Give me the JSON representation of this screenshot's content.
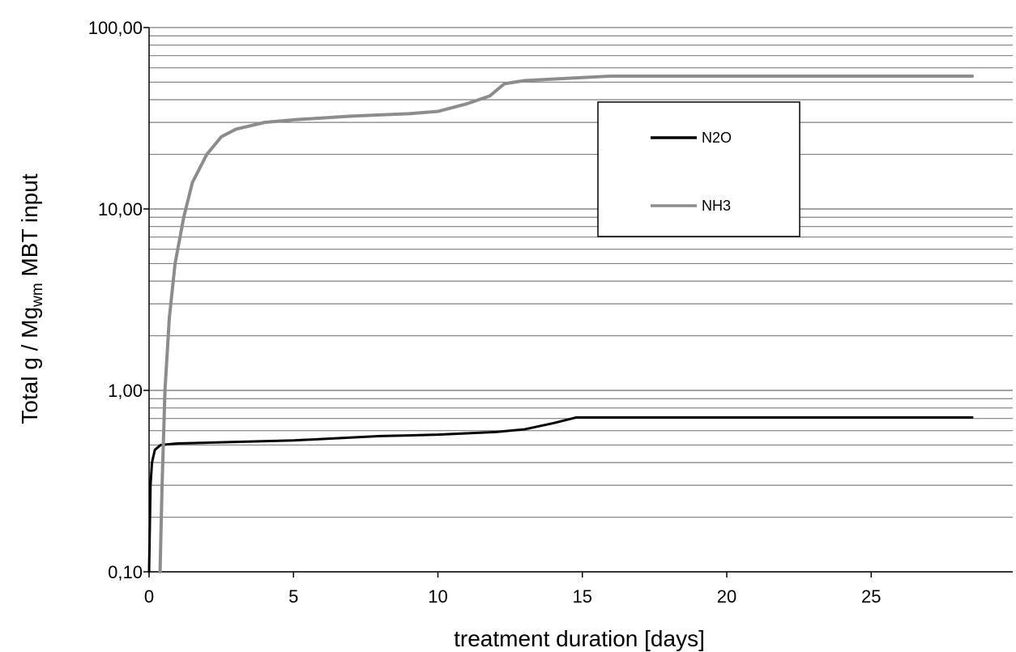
{
  "chart_data": {
    "type": "line",
    "xlabel": "treatment duration [days]",
    "ylabel": {
      "prefix": "Total g / Mg",
      "subscript": "wm",
      "suffix": " MBT input"
    },
    "x_scale": "linear",
    "y_scale": "log",
    "xlim": [
      0,
      30
    ],
    "ylim": [
      0.1,
      100
    ],
    "x_ticks": [
      0,
      5,
      10,
      15,
      20,
      25
    ],
    "x_tick_labels": [
      "0",
      "5",
      "10",
      "15",
      "20",
      "25"
    ],
    "y_ticks": [
      0.1,
      1,
      10,
      100
    ],
    "y_tick_labels": [
      "0,10",
      "1,00",
      "10,00",
      "100,00"
    ],
    "grid": "horizontal minor and major",
    "legend_placement": "upper-middle-right",
    "series": [
      {
        "name": "N2O",
        "color": "#000000",
        "points": [
          [
            0.0,
            0.1
          ],
          [
            0.05,
            0.3
          ],
          [
            0.1,
            0.4
          ],
          [
            0.2,
            0.47
          ],
          [
            0.4,
            0.5
          ],
          [
            1.0,
            0.51
          ],
          [
            3.0,
            0.52
          ],
          [
            5.0,
            0.53
          ],
          [
            8.0,
            0.56
          ],
          [
            10.0,
            0.57
          ],
          [
            12.0,
            0.59
          ],
          [
            13.0,
            0.61
          ],
          [
            14.0,
            0.66
          ],
          [
            14.8,
            0.71
          ],
          [
            20.0,
            0.71
          ],
          [
            28.5,
            0.71
          ]
        ]
      },
      {
        "name": "NH3",
        "color": "#8c8c8c",
        "points": [
          [
            0.38,
            0.1
          ],
          [
            0.45,
            0.3
          ],
          [
            0.55,
            1.0
          ],
          [
            0.7,
            2.5
          ],
          [
            0.9,
            5.0
          ],
          [
            1.2,
            9.0
          ],
          [
            1.5,
            14.0
          ],
          [
            2.0,
            20.0
          ],
          [
            2.5,
            25.0
          ],
          [
            3.0,
            27.5
          ],
          [
            4.0,
            30.0
          ],
          [
            5.0,
            31.0
          ],
          [
            7.0,
            32.5
          ],
          [
            9.0,
            33.5
          ],
          [
            10.0,
            34.5
          ],
          [
            11.0,
            38.0
          ],
          [
            11.8,
            42.0
          ],
          [
            12.3,
            49.0
          ],
          [
            13.0,
            51.0
          ],
          [
            15.0,
            53.0
          ],
          [
            16.0,
            54.0
          ],
          [
            28.5,
            54.0
          ]
        ]
      }
    ]
  }
}
